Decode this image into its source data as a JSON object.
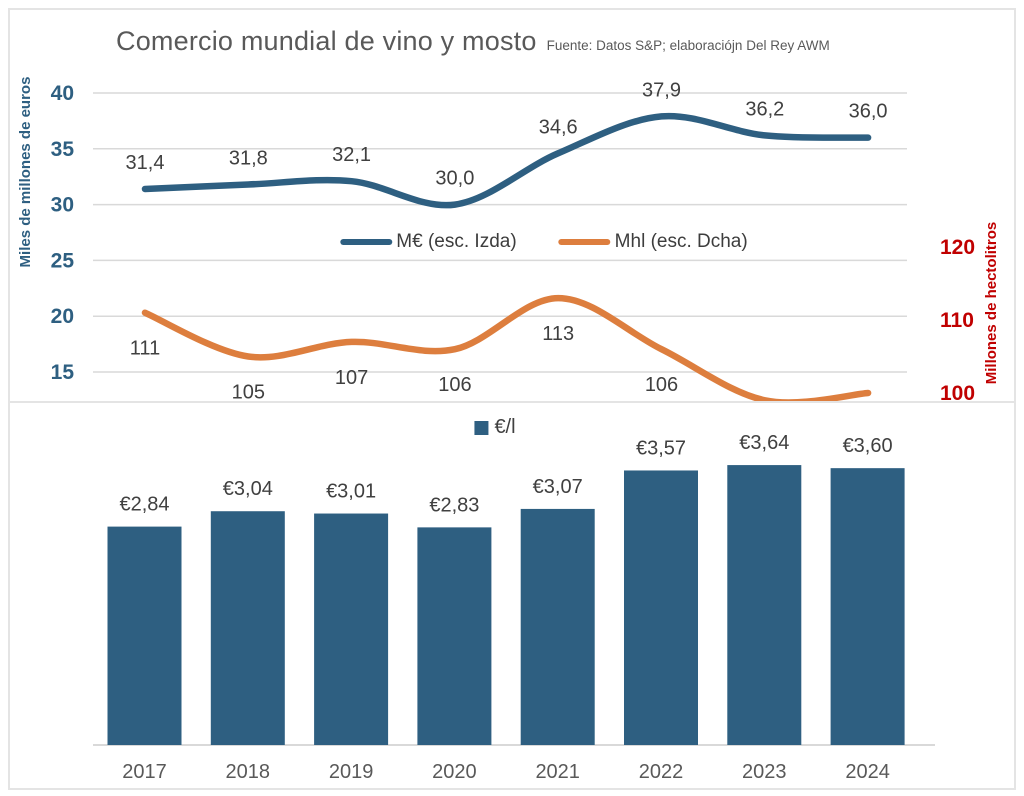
{
  "header": {
    "title": "Comercio mundial de vino y mosto",
    "source": "Fuente: Datos S&P; elaboraciójn Del Rey AWM"
  },
  "colors": {
    "blue": "#2e5f81",
    "orange": "#dd7e3e",
    "red": "#c00000",
    "label": "#404040",
    "title": "#595959",
    "grid": "#d9d9d9"
  },
  "chart_data": [
    {
      "type": "line",
      "title": "Comercio mundial de vino y mosto",
      "x": [
        "2017",
        "2018",
        "2019",
        "2020",
        "2021",
        "2022",
        "2023",
        "2024"
      ],
      "series": [
        {
          "name": "M€ (esc. Izda)",
          "axis": "left",
          "color": "#2e5f81",
          "values": [
            31.4,
            31.8,
            32.1,
            30.0,
            34.6,
            37.9,
            36.2,
            36.0
          ],
          "point_labels": [
            "31,4",
            "31,8",
            "32,1",
            "30,0",
            "34,6",
            "37,9",
            "36,2",
            "36,0"
          ]
        },
        {
          "name": "Mhl (esc. Dcha)",
          "axis": "right",
          "color": "#dd7e3e",
          "values": [
            111,
            105,
            107,
            106,
            113,
            106,
            99,
            100
          ],
          "point_labels": [
            "111",
            "105",
            "107",
            "106",
            "113",
            "106",
            "",
            ""
          ]
        }
      ],
      "left_axis": {
        "title": "Miles de millones de euros",
        "tick_values": [
          40,
          35,
          30,
          25,
          20,
          15
        ],
        "range": [
          15,
          40
        ]
      },
      "right_axis": {
        "title": "Millones de hectolitros",
        "tick_values": [
          120,
          110,
          100
        ],
        "range": [
          100,
          120
        ]
      },
      "legend_position": "center",
      "grid": true
    },
    {
      "type": "bar",
      "categories": [
        "2017",
        "2018",
        "2019",
        "2020",
        "2021",
        "2022",
        "2023",
        "2024"
      ],
      "values": [
        2.84,
        3.04,
        3.01,
        2.83,
        3.07,
        3.57,
        3.64,
        3.6
      ],
      "bar_labels": [
        "€2,84",
        "€3,04",
        "€3,01",
        "€2,83",
        "€3,07",
        "€3,57",
        "€3,64",
        "€3,60"
      ],
      "legend": "€/l",
      "bar_color": "#2e5f81",
      "ylim": [
        0,
        4.4
      ],
      "grid": false
    }
  ]
}
